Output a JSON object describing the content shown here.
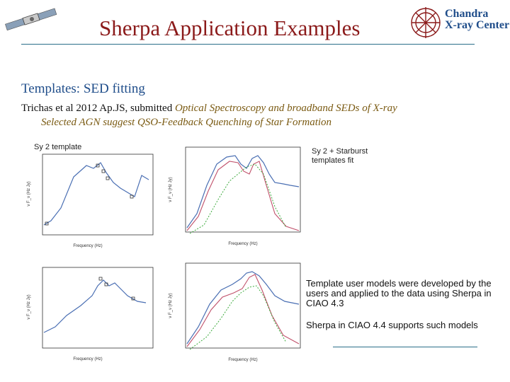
{
  "header": {
    "title": "Sherpa Application Examples",
    "logo": {
      "line1": "Chandra",
      "line2": "X-ray Center"
    },
    "satellite_icon": "satellite-icon"
  },
  "subtitle": "Templates:  SED fitting",
  "citation": {
    "prefix": "Trichas et al 2012 Ap.JS, submitted",
    "italic1": "Optical Spectroscopy and broadband SEDs of X-ray",
    "italic2": "Selected AGN suggest QSO-Feedback Quenching of Star Formation"
  },
  "labels": {
    "sy2_template": "Sy 2 template",
    "sy2_starburst": "Sy 2 + Starburst\ntemplates fit"
  },
  "notes": {
    "note1": "Template user models were developed by the users and applied to the data using Sherpa in  CIAO 4.3",
    "note2": "Sherpa in CIAO 4.4 supports such models"
  },
  "plot_text": {
    "xlabel": "Frequency (Hz)",
    "ylabel_left": "ν F_ν (Hz Jy)",
    "ylabel_right": "ν F_ν (Hz Jy)"
  },
  "colors": {
    "title": "#8b1a1a",
    "accent": "#1f4d8a",
    "rule": "#2a6f8a",
    "curve_blue": "#4a6fb3",
    "curve_red": "#c0506a",
    "curve_green": "#3caa3c"
  }
}
